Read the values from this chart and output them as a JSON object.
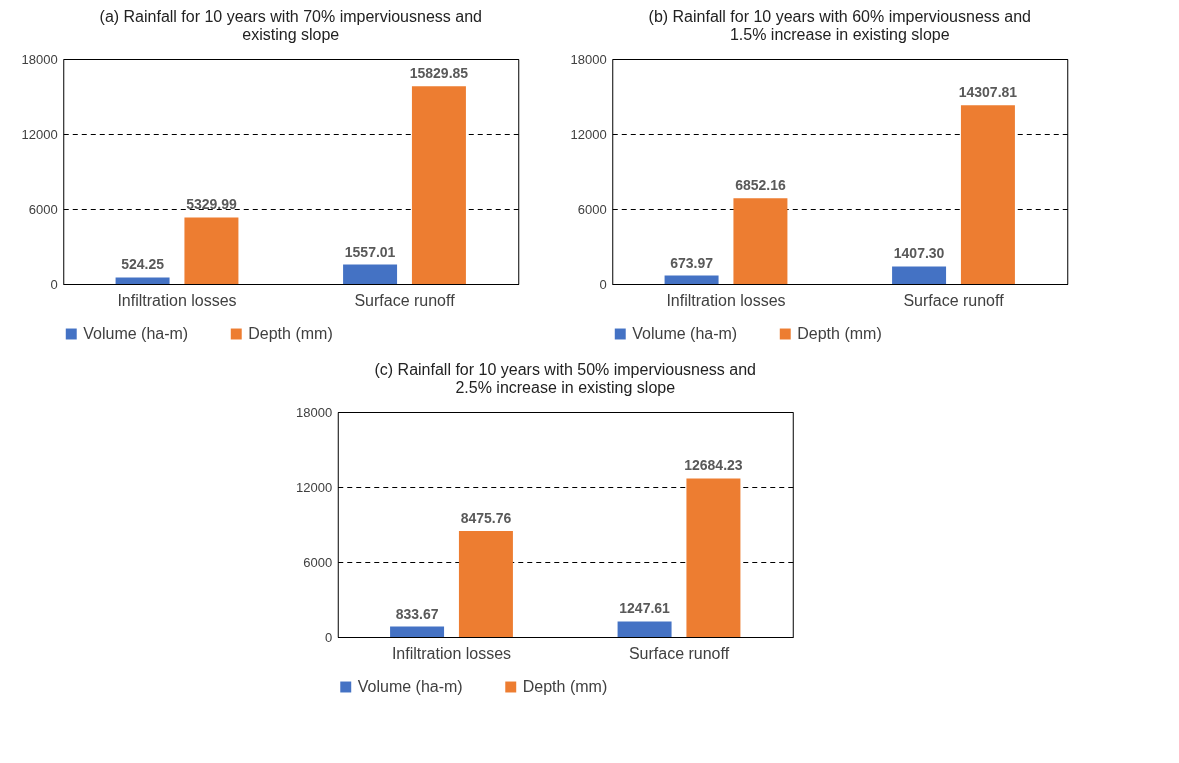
{
  "chart_data": [
    {
      "type": "bar",
      "title": "(a) Rainfall for 10 years with 70% imperviousness and existing slope",
      "categories": [
        "Infiltration losses",
        "Surface runoff"
      ],
      "series": [
        {
          "name": "Volume (ha-m)",
          "color": "#4472c4",
          "values": [
            524.25,
            1557.01
          ],
          "value_labels": [
            "524.25",
            "1557.01"
          ]
        },
        {
          "name": "Depth (mm)",
          "color": "#ed7d31",
          "values": [
            5329.99,
            15829.85
          ],
          "value_labels": [
            "5329.99",
            "15829.85"
          ]
        }
      ],
      "ylim": [
        0,
        18000
      ],
      "yticks": [
        0,
        6000,
        12000,
        18000
      ],
      "grid": "y",
      "legend": "bottom"
    },
    {
      "type": "bar",
      "title": "(b) Rainfall for 10 years with 60% imperviousness and 1.5% increase in existing slope",
      "categories": [
        "Infiltration losses",
        "Surface runoff"
      ],
      "series": [
        {
          "name": "Volume (ha-m)",
          "color": "#4472c4",
          "values": [
            673.97,
            1407.3
          ],
          "value_labels": [
            "673.97",
            "1407.30"
          ]
        },
        {
          "name": "Depth (mm)",
          "color": "#ed7d31",
          "values": [
            6852.16,
            14307.81
          ],
          "value_labels": [
            "6852.16",
            "14307.81"
          ]
        }
      ],
      "ylim": [
        0,
        18000
      ],
      "yticks": [
        0,
        6000,
        12000,
        18000
      ],
      "grid": "y",
      "legend": "bottom"
    },
    {
      "type": "bar",
      "title": "(c) Rainfall for 10 years with 50% imperviousness and 2.5% increase in existing slope",
      "categories": [
        "Infiltration losses",
        "Surface runoff"
      ],
      "series": [
        {
          "name": "Volume (ha-m)",
          "color": "#4472c4",
          "values": [
            833.67,
            1247.61
          ],
          "value_labels": [
            "833.67",
            "1247.61"
          ]
        },
        {
          "name": "Depth (mm)",
          "color": "#ed7d31",
          "values": [
            8475.76,
            12684.23
          ],
          "value_labels": [
            "8475.76",
            "12684.23"
          ]
        }
      ],
      "ylim": [
        0,
        18000
      ],
      "yticks": [
        0,
        6000,
        12000,
        18000
      ],
      "grid": "y",
      "legend": "bottom"
    }
  ]
}
